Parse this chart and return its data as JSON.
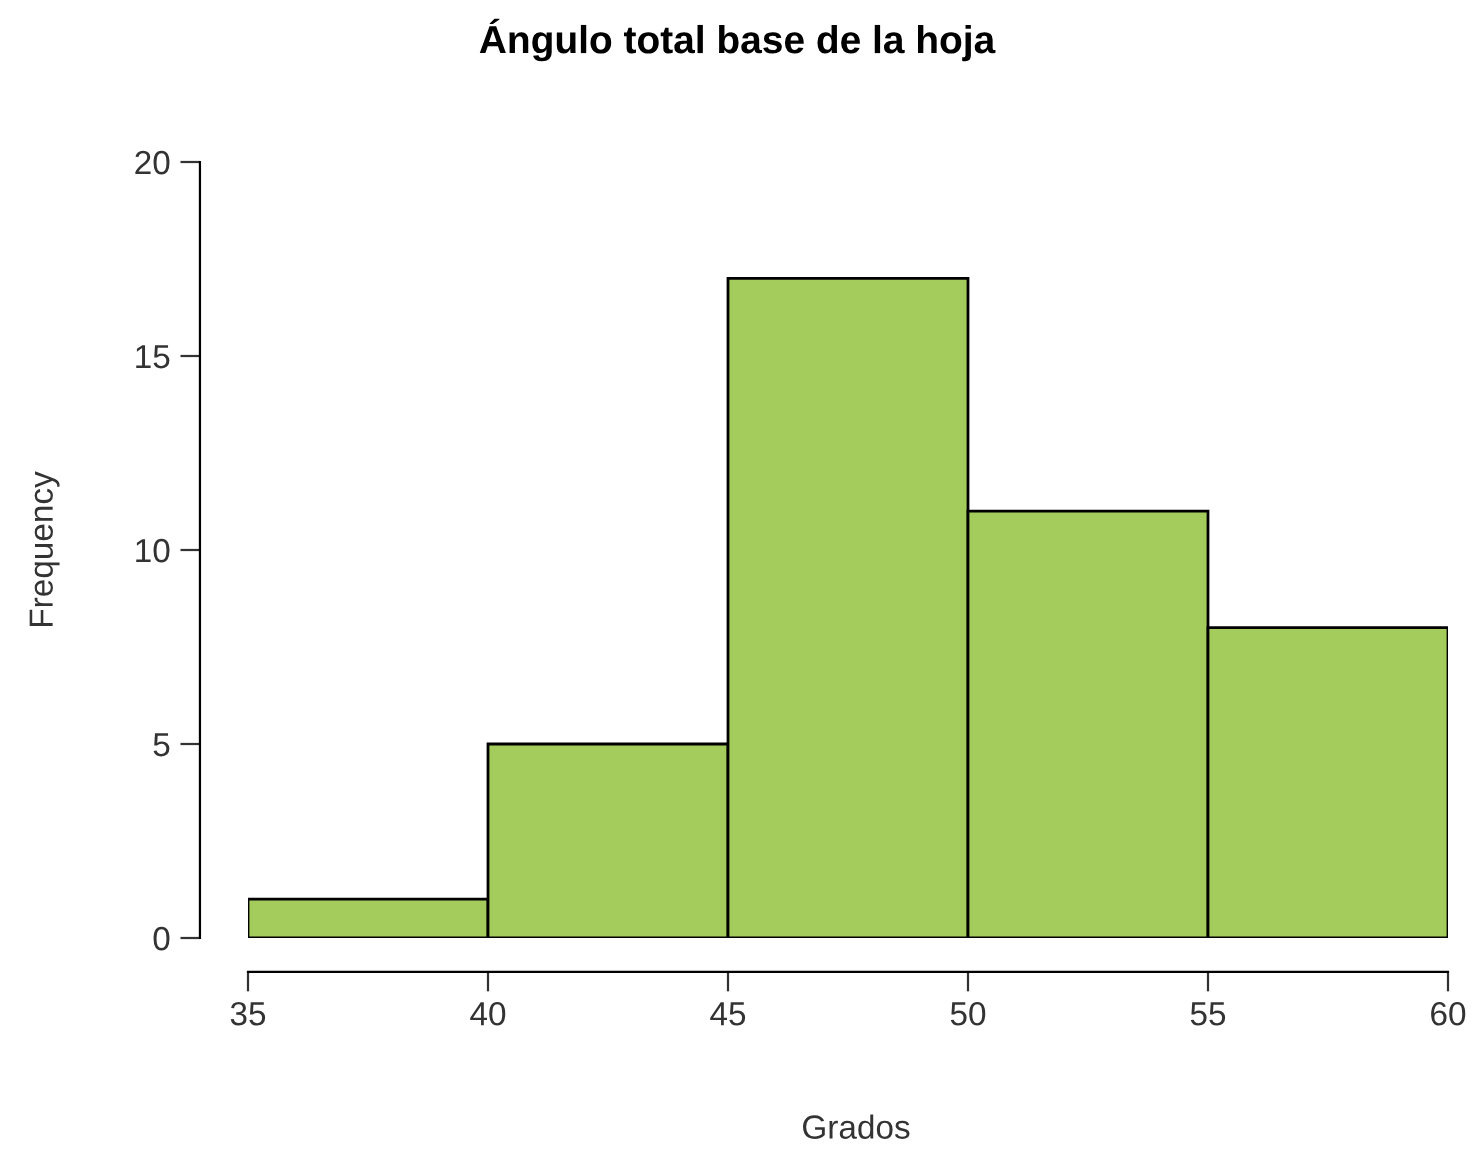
{
  "chart_data": {
    "type": "histogram",
    "title": "Ángulo total base de la hoja",
    "xlabel": "Grados",
    "ylabel": "Frequency",
    "bins": [
      35,
      40,
      45,
      50,
      55,
      60
    ],
    "values": [
      1,
      5,
      17,
      11,
      8
    ],
    "color": "#a3cc5c",
    "xlim": [
      35,
      60
    ],
    "xticks": [
      35,
      40,
      45,
      50,
      55,
      60
    ],
    "ylim": [
      0,
      20
    ],
    "yticks": [
      0,
      5,
      10,
      15,
      20
    ],
    "grid": false,
    "legend": false
  }
}
